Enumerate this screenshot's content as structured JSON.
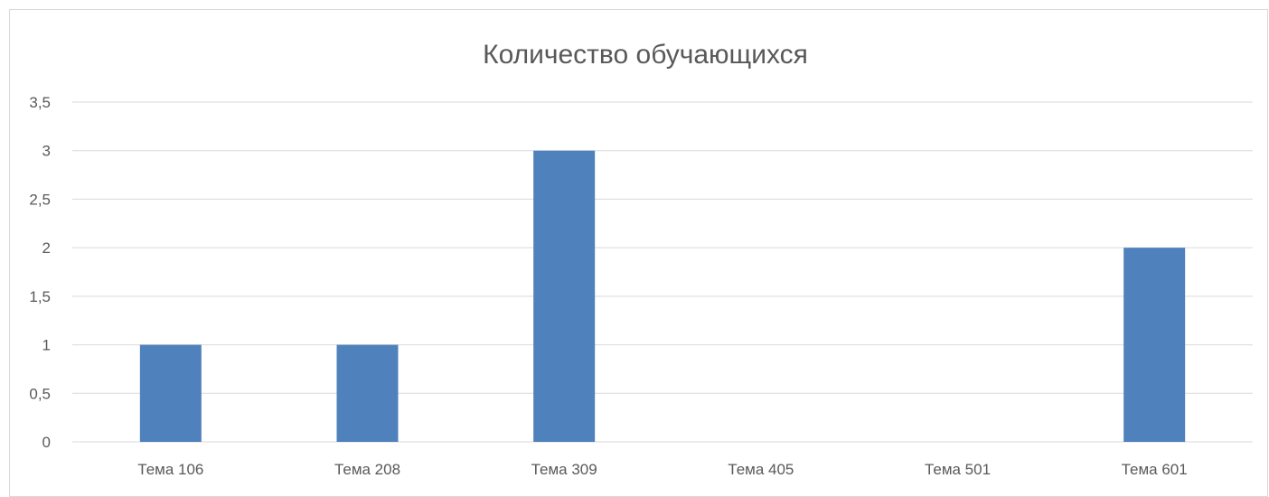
{
  "chart_data": {
    "type": "bar",
    "title": "Количество обучающихся",
    "categories": [
      "Тема 106",
      "Тема 208",
      "Тема 309",
      "Тема 405",
      "Тема 501",
      "Тема 601"
    ],
    "values": [
      1,
      1,
      3,
      0,
      0,
      2
    ],
    "xlabel": "",
    "ylabel": "",
    "ylim": [
      0,
      3.5
    ],
    "yticks": [
      0,
      0.5,
      1,
      1.5,
      2,
      2.5,
      3,
      3.5
    ],
    "ytick_labels": [
      "0",
      "0,5",
      "1",
      "1,5",
      "2",
      "2,5",
      "3",
      "3,5"
    ],
    "grid": true,
    "legend": "none",
    "colors": {
      "bar": "#4f81bd",
      "grid": "#d9d9d9",
      "text": "#595959"
    }
  }
}
